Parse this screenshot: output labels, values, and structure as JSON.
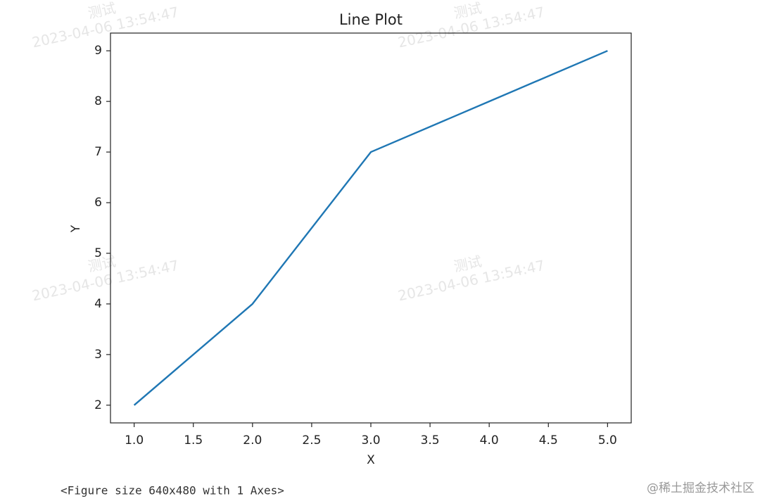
{
  "chart_data": {
    "type": "line",
    "title": "Line Plot",
    "xlabel": "X",
    "ylabel": "Y",
    "x": [
      1,
      2,
      3,
      4,
      5
    ],
    "values": [
      2,
      4,
      7,
      8,
      9
    ],
    "color": "#1f77b4",
    "xlim": [
      0.8,
      5.2
    ],
    "xticks": [
      {
        "value": 1,
        "label": "1.0"
      },
      {
        "value": 1.5,
        "label": "1.5"
      },
      {
        "value": 2,
        "label": "2.0"
      },
      {
        "value": 2.5,
        "label": "2.5"
      },
      {
        "value": 3,
        "label": "3.0"
      },
      {
        "value": 3.5,
        "label": "3.5"
      },
      {
        "value": 4,
        "label": "4.0"
      },
      {
        "value": 4.5,
        "label": "4.5"
      },
      {
        "value": 5,
        "label": "5.0"
      }
    ],
    "ylim": [
      1.65,
      9.35
    ],
    "yticks": [
      2,
      3,
      4,
      5,
      6,
      7,
      8,
      9
    ],
    "grid": false
  },
  "output_text": "<Figure size 640x480 with 1 Axes>",
  "watermark": {
    "label": "测试",
    "time": "2023-04-06 13:54:47"
  },
  "site_mark": "@稀土掘金技术社区"
}
